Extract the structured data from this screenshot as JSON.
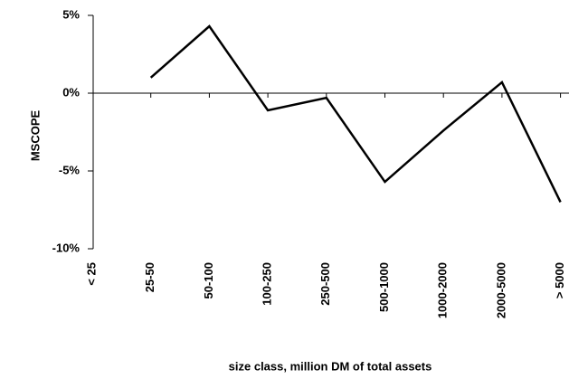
{
  "chart_data": {
    "type": "line",
    "y_label": "MSCOPE",
    "x_label": "size class, million DM of total assets",
    "categories": [
      "< 25",
      "25-50",
      "50-100",
      "100-250",
      "250-500",
      "500-1000",
      "1000-2000",
      "2000-5000",
      "> 5000"
    ],
    "series": [
      {
        "name": "MSCOPE",
        "color": "#000000",
        "values": [
          null,
          1.0,
          4.3,
          -1.1,
          -0.3,
          -5.7,
          -2.4,
          0.7,
          -7.0
        ]
      }
    ],
    "ylim": [
      -10,
      5
    ],
    "yticks": [
      {
        "value": -10,
        "label": "-10%"
      },
      {
        "value": -5,
        "label": "-5%"
      },
      {
        "value": 0,
        "label": "0%"
      },
      {
        "value": 5,
        "label": "5%"
      }
    ]
  }
}
